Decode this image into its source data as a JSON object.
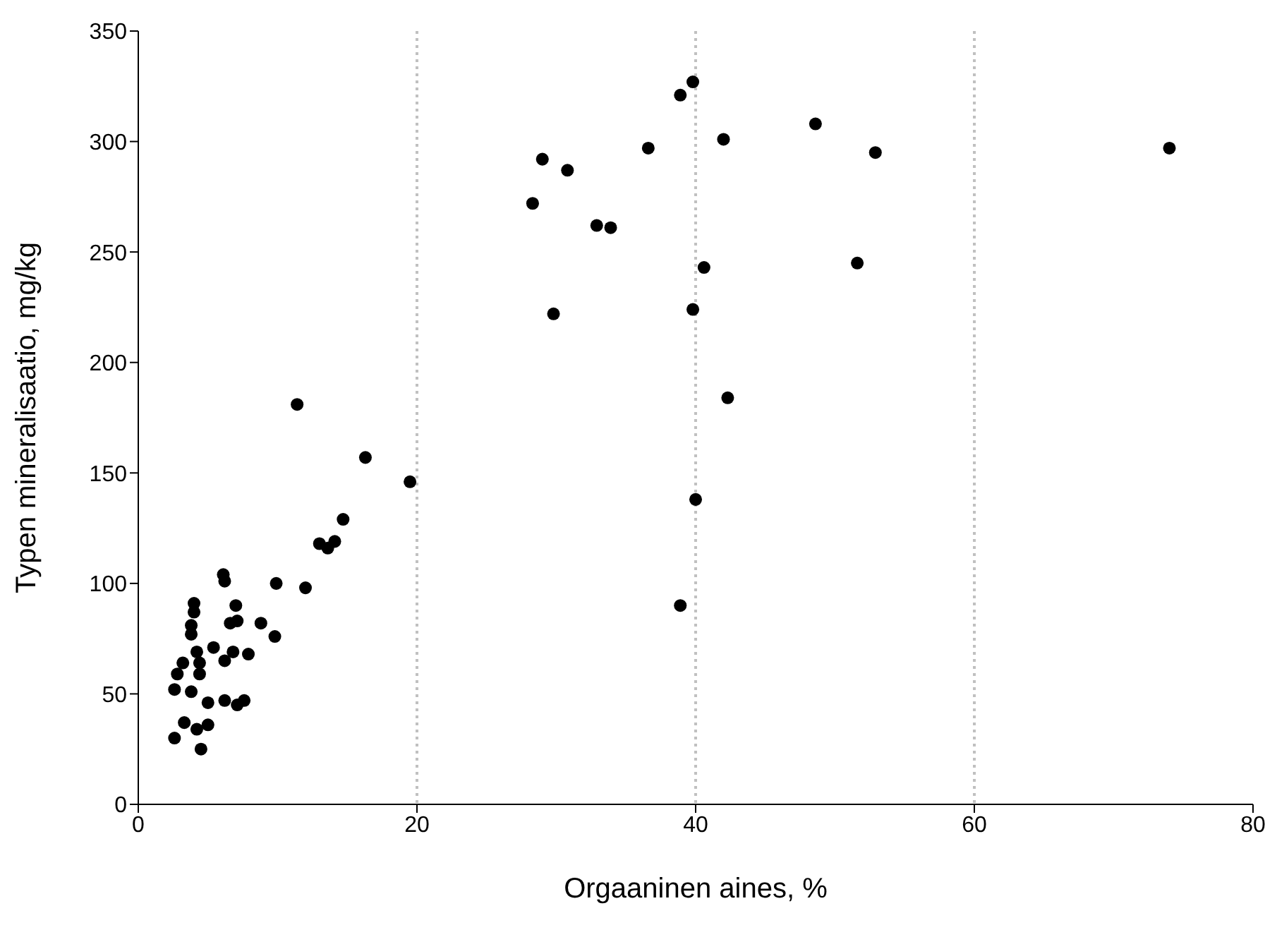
{
  "chart_data": {
    "type": "scatter",
    "xlabel": "Orgaaninen aines, %",
    "ylabel": "Typen mineralisaatio, mg/kg",
    "xlim": [
      0,
      80
    ],
    "xticks": [
      0,
      20,
      40,
      60,
      80
    ],
    "ylim": [
      0,
      350
    ],
    "yticks": [
      0,
      50,
      100,
      150,
      200,
      250,
      300,
      350
    ],
    "grid": "x",
    "marker": "circle",
    "series": [
      {
        "color": "#000000",
        "x": [
          28.3,
          29,
          29.8,
          30.8,
          32.9,
          33.9,
          36.6,
          38.9,
          39.8,
          39.8,
          40,
          38.9,
          40.6,
          42,
          42.3,
          48.6,
          51.6,
          52.9,
          74,
          11.4,
          16.3,
          19.5,
          14.7,
          13,
          14.1,
          13.6,
          12,
          9.9,
          9.8,
          8.8,
          7.9,
          7,
          6.6,
          7.1,
          6.1,
          6.2,
          7.1,
          7.6,
          6.2,
          5,
          6.2,
          6.8,
          5.4,
          5,
          4.5,
          4.2,
          3.3,
          3.8,
          2.6,
          2.6,
          2.8,
          3.2,
          4.4,
          4.4,
          4.2,
          3.8,
          3.8,
          4,
          4
        ],
        "values": [
          272,
          292,
          222,
          287,
          262,
          261,
          297,
          321,
          327,
          224,
          138,
          90,
          243,
          301,
          184,
          308,
          245,
          295,
          297,
          181,
          157,
          146,
          129,
          118,
          119,
          116,
          98,
          100,
          76,
          82,
          68,
          90,
          82,
          83,
          104,
          101,
          45,
          47,
          47,
          46,
          65,
          69,
          71,
          36,
          25,
          34,
          37,
          51,
          30,
          52,
          59,
          64,
          59,
          64,
          69,
          77,
          81,
          87,
          91
        ]
      }
    ]
  }
}
